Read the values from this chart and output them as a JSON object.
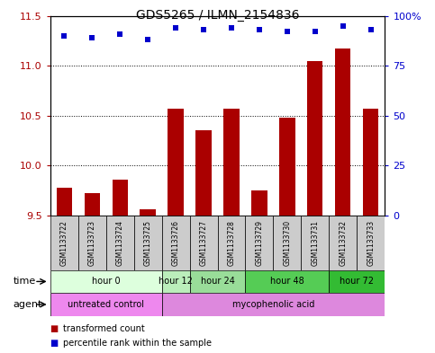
{
  "title": "GDS5265 / ILMN_2154836",
  "samples": [
    "GSM1133722",
    "GSM1133723",
    "GSM1133724",
    "GSM1133725",
    "GSM1133726",
    "GSM1133727",
    "GSM1133728",
    "GSM1133729",
    "GSM1133730",
    "GSM1133731",
    "GSM1133732",
    "GSM1133733"
  ],
  "bar_values": [
    9.78,
    9.72,
    9.86,
    9.56,
    10.57,
    10.35,
    10.57,
    9.75,
    10.48,
    11.05,
    11.17,
    10.57
  ],
  "percentile_values": [
    90,
    89,
    91,
    88,
    94,
    93,
    94,
    93,
    92,
    92,
    95,
    93
  ],
  "ylim_left": [
    9.5,
    11.5
  ],
  "ylim_right": [
    0,
    100
  ],
  "yticks_left": [
    9.5,
    10.0,
    10.5,
    11.0,
    11.5
  ],
  "yticks_right": [
    0,
    25,
    50,
    75,
    100
  ],
  "ytick_right_labels": [
    "0",
    "25",
    "50",
    "75",
    "100%"
  ],
  "bar_color": "#aa0000",
  "dot_color": "#0000cc",
  "time_groups": [
    {
      "label": "hour 0",
      "span": [
        0,
        3
      ],
      "color": "#ddffdd"
    },
    {
      "label": "hour 12",
      "span": [
        4,
        4
      ],
      "color": "#bbeebb"
    },
    {
      "label": "hour 24",
      "span": [
        5,
        6
      ],
      "color": "#99dd99"
    },
    {
      "label": "hour 48",
      "span": [
        7,
        9
      ],
      "color": "#55cc55"
    },
    {
      "label": "hour 72",
      "span": [
        10,
        11
      ],
      "color": "#33bb33"
    }
  ],
  "agent_groups": [
    {
      "label": "untreated control",
      "span": [
        0,
        3
      ],
      "color": "#ee88ee"
    },
    {
      "label": "mycophenolic acid",
      "span": [
        4,
        11
      ],
      "color": "#dd88dd"
    }
  ],
  "legend_items": [
    {
      "label": "transformed count",
      "color": "#aa0000"
    },
    {
      "label": "percentile rank within the sample",
      "color": "#0000cc"
    }
  ],
  "time_label": "time",
  "agent_label": "agent",
  "bg_color": "#dddddd",
  "plot_bg": "white",
  "sample_box_color": "#cccccc"
}
